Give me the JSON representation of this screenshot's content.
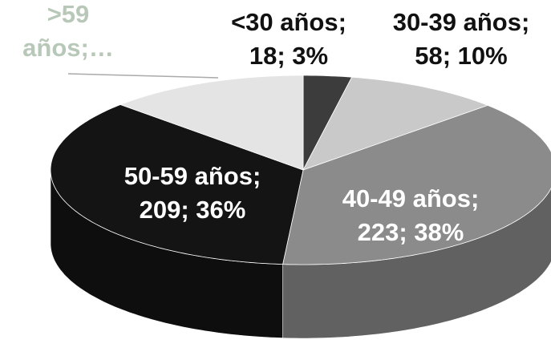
{
  "chart_data": {
    "type": "pie3d",
    "values": [
      18,
      58,
      223,
      209,
      75
    ],
    "value_labels": [
      [
        "<30 años;",
        "18; 3%"
      ],
      [
        "30-39 años;",
        "58; 10%"
      ],
      [
        "40-49 años;",
        "223; 38%"
      ],
      [
        "50-59 años;",
        "209; 36%"
      ],
      [
        ">59",
        "años;…"
      ]
    ],
    "colors": [
      "#3c3c3c",
      "#c9c9c9",
      "#8b8b8b",
      "#141414",
      "#e4e4e4"
    ],
    "label_colors": [
      "#111111",
      "#111111",
      "#ffffff",
      "#ffffff",
      "#b8c8b8"
    ]
  }
}
